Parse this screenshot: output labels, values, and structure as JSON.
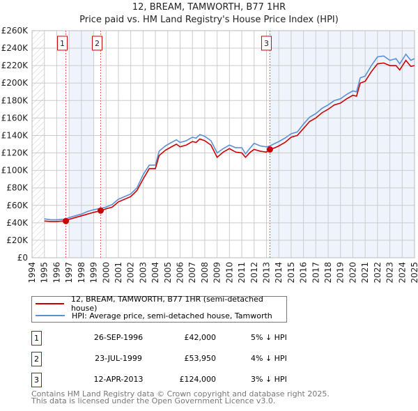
{
  "chart_data": {
    "type": "line",
    "title": "12, BREAM, TAMWORTH, B77 1HR",
    "subtitle": "Price paid vs. HM Land Registry's House Price Index (HPI)",
    "xlim": [
      1994,
      2025
    ],
    "ylim": [
      0,
      260000
    ],
    "x_ticks": [
      "1994",
      "1995",
      "1996",
      "1997",
      "1998",
      "1999",
      "2000",
      "2001",
      "2002",
      "2003",
      "2004",
      "2005",
      "2006",
      "2007",
      "2008",
      "2009",
      "2010",
      "2011",
      "2012",
      "2013",
      "2014",
      "2015",
      "2016",
      "2017",
      "2018",
      "2019",
      "2020",
      "2021",
      "2022",
      "2023",
      "2024",
      "2025"
    ],
    "y_ticks": [
      "£0",
      "£20K",
      "£40K",
      "£60K",
      "£80K",
      "£100K",
      "£120K",
      "£140K",
      "£160K",
      "£180K",
      "£200K",
      "£220K",
      "£240K",
      "£260K"
    ],
    "grid": true,
    "colors": {
      "property": "#cc0000",
      "hpi": "#5b8fd6",
      "shade": "#eef3fc"
    },
    "series": [
      {
        "name": "12, BREAM, TAMWORTH, B77 1HR (semi-detached house)",
        "x": [
          1995,
          1995.5,
          1996,
          1996.5,
          1996.74,
          1997,
          1997.5,
          1998,
          1998.5,
          1999,
          1999.56,
          2000,
          2000.5,
          2001,
          2001.5,
          2002,
          2002.5,
          2003,
          2003.5,
          2004,
          2004.3,
          2004.8,
          2005.3,
          2005.7,
          2006,
          2006.5,
          2007,
          2007.3,
          2007.6,
          2008,
          2008.5,
          2009,
          2009.5,
          2010,
          2010.5,
          2011,
          2011.3,
          2011.7,
          2012,
          2012.5,
          2013,
          2013.28,
          2013.7,
          2014,
          2014.5,
          2015,
          2015.5,
          2016,
          2016.5,
          2017,
          2017.5,
          2018,
          2018.5,
          2019,
          2019.5,
          2020,
          2020.3,
          2020.6,
          2021,
          2021.5,
          2022,
          2022.5,
          2023,
          2023.5,
          2023.8,
          2024.3,
          2024.7,
          2025
        ],
        "y": [
          42000,
          41500,
          41500,
          42000,
          42000,
          44000,
          46000,
          48000,
          50000,
          52000,
          53950,
          56000,
          58000,
          64000,
          67000,
          70000,
          77000,
          90000,
          102000,
          102000,
          117000,
          123000,
          127000,
          130000,
          127000,
          129000,
          133000,
          132000,
          136000,
          134000,
          129000,
          115000,
          121000,
          125000,
          121000,
          120000,
          115000,
          121000,
          124000,
          122000,
          121000,
          124000,
          126000,
          128000,
          132000,
          138000,
          140000,
          148000,
          156000,
          160000,
          166000,
          170000,
          175000,
          177000,
          182000,
          186000,
          185000,
          200000,
          202000,
          213000,
          222000,
          223000,
          220000,
          220000,
          215000,
          226000,
          219000,
          220000
        ]
      },
      {
        "name": "HPI: Average price, semi-detached house, Tamworth",
        "x": [
          1995,
          1995.5,
          1996,
          1996.5,
          1996.74,
          1997,
          1997.5,
          1998,
          1998.5,
          1999,
          1999.56,
          2000,
          2000.5,
          2001,
          2001.5,
          2002,
          2002.5,
          2003,
          2003.5,
          2004,
          2004.3,
          2004.8,
          2005.3,
          2005.7,
          2006,
          2006.5,
          2007,
          2007.3,
          2007.6,
          2008,
          2008.5,
          2009,
          2009.5,
          2010,
          2010.5,
          2011,
          2011.3,
          2011.7,
          2012,
          2012.5,
          2013,
          2013.28,
          2013.7,
          2014,
          2014.5,
          2015,
          2015.5,
          2016,
          2016.5,
          2017,
          2017.5,
          2018,
          2018.5,
          2019,
          2019.5,
          2020,
          2020.3,
          2020.6,
          2021,
          2021.5,
          2022,
          2022.5,
          2023,
          2023.5,
          2023.8,
          2024.3,
          2024.7,
          2025
        ],
        "y": [
          44500,
          43500,
          43500,
          44000,
          44500,
          46000,
          48000,
          50000,
          53000,
          55000,
          56500,
          58000,
          61000,
          67000,
          70000,
          73000,
          80000,
          95000,
          106000,
          106000,
          122000,
          128000,
          132000,
          135000,
          132000,
          134000,
          138000,
          137000,
          141000,
          139000,
          134000,
          120000,
          125000,
          129000,
          126000,
          126000,
          119000,
          126000,
          131000,
          128000,
          127000,
          128000,
          131000,
          133000,
          137000,
          142000,
          144000,
          153000,
          161000,
          165000,
          171000,
          175000,
          180000,
          182000,
          187000,
          191000,
          190000,
          206000,
          208000,
          220000,
          230000,
          231000,
          226000,
          228000,
          222000,
          233000,
          226000,
          228000
        ]
      }
    ],
    "sales": [
      {
        "label": "1",
        "x": 1996.74,
        "y": 42000
      },
      {
        "label": "2",
        "x": 1999.56,
        "y": 53950
      },
      {
        "label": "3",
        "x": 2013.28,
        "y": 124000
      }
    ],
    "shaded_ranges": [
      [
        1997,
        1999
      ],
      [
        2013.28,
        2025
      ]
    ]
  },
  "legend": {
    "property": "12, BREAM, TAMWORTH, B77 1HR (semi-detached house)",
    "hpi": "HPI: Average price, semi-detached house, Tamworth"
  },
  "table": [
    {
      "num": "1",
      "date": "26-SEP-1996",
      "price": "£42,000",
      "hpi": "5% ↓ HPI"
    },
    {
      "num": "2",
      "date": "23-JUL-1999",
      "price": "£53,950",
      "hpi": "4% ↓ HPI"
    },
    {
      "num": "3",
      "date": "12-APR-2013",
      "price": "£124,000",
      "hpi": "3% ↓ HPI"
    }
  ],
  "footer": {
    "line1": "Contains HM Land Registry data © Crown copyright and database right 2025.",
    "line2": "This data is licensed under the Open Government Licence v3.0."
  }
}
